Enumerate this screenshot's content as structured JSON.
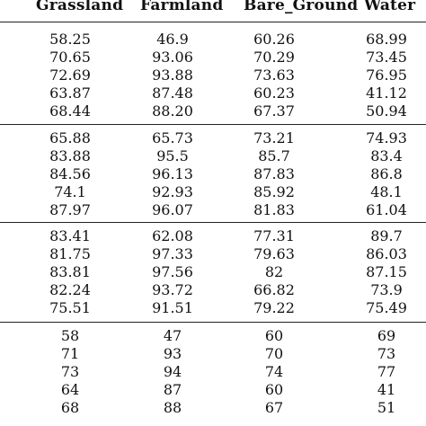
{
  "table": {
    "columns": [
      "Grassland",
      "Farmland",
      "Bare_Ground",
      "Water"
    ],
    "groups": [
      {
        "rows": [
          [
            "58.25",
            "46.9",
            "60.26",
            "68.99"
          ],
          [
            "70.65",
            "93.06",
            "70.29",
            "73.45"
          ],
          [
            "72.69",
            "93.88",
            "73.63",
            "76.95"
          ],
          [
            "63.87",
            "87.48",
            "60.23",
            "41.12"
          ],
          [
            "68.44",
            "88.20",
            "67.37",
            "50.94"
          ]
        ]
      },
      {
        "rows": [
          [
            "65.88",
            "65.73",
            "73.21",
            "74.93"
          ],
          [
            "83.88",
            "95.5",
            "85.7",
            "83.4"
          ],
          [
            "84.56",
            "96.13",
            "87.83",
            "86.8"
          ],
          [
            "74.1",
            "92.93",
            "85.92",
            "48.1"
          ],
          [
            "87.97",
            "96.07",
            "81.83",
            "61.04"
          ]
        ]
      },
      {
        "rows": [
          [
            "83.41",
            "62.08",
            "77.31",
            "89.7"
          ],
          [
            "81.75",
            "97.33",
            "79.63",
            "86.03"
          ],
          [
            "83.81",
            "97.56",
            "82",
            "87.15"
          ],
          [
            "82.24",
            "93.72",
            "66.82",
            "73.9"
          ],
          [
            "75.51",
            "91.51",
            "79.22",
            "75.49"
          ]
        ]
      },
      {
        "rows": [
          [
            "58",
            "47",
            "60",
            "69"
          ],
          [
            "71",
            "93",
            "70",
            "73"
          ],
          [
            "73",
            "94",
            "74",
            "77"
          ],
          [
            "64",
            "87",
            "60",
            "41"
          ],
          [
            "68",
            "88",
            "67",
            "51"
          ]
        ]
      }
    ]
  }
}
